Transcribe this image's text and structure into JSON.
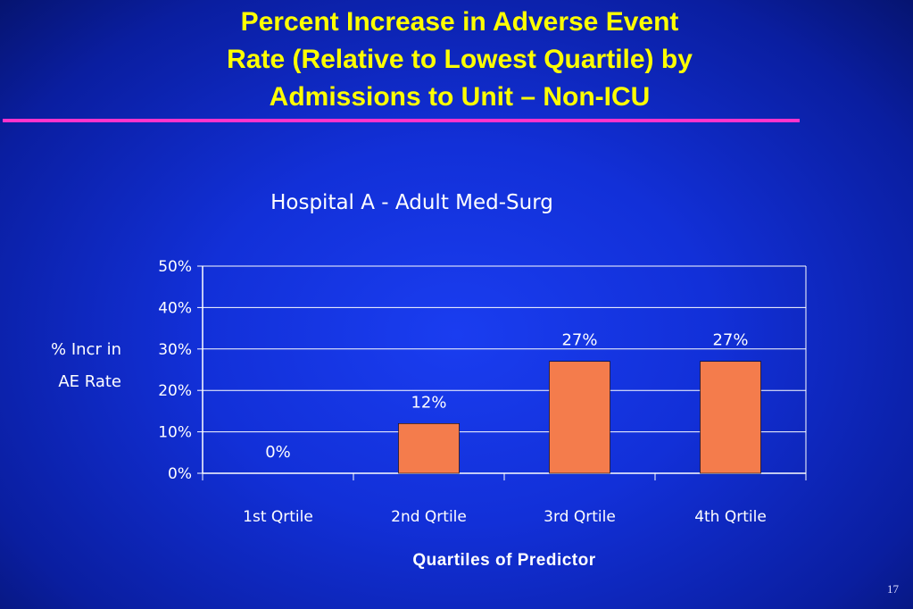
{
  "slide": {
    "title_lines": [
      "Percent Increase in Adverse Event",
      "Rate (Relative to Lowest Quartile) by",
      "Admissions to Unit – Non-ICU"
    ],
    "page_number": "17"
  },
  "colors": {
    "title": "#ffff00",
    "accent_line": "#ff33cc",
    "bar_fill": "#f47c4c",
    "text": "#ffffff"
  },
  "chart_data": {
    "type": "bar",
    "title": "Hospital A - Adult Med-Surg",
    "ylabel_lines": [
      "% Incr in",
      "AE Rate"
    ],
    "xlabel": "Quartiles of Predictor",
    "categories": [
      "1st Qrtile",
      "2nd Qrtile",
      "3rd Qrtile",
      "4th Qrtile"
    ],
    "values": [
      0,
      12,
      27,
      27
    ],
    "data_labels": [
      "0%",
      "12%",
      "27%",
      "27%"
    ],
    "ylim": [
      0,
      50
    ],
    "yticks": [
      0,
      10,
      20,
      30,
      40,
      50
    ],
    "ytick_labels": [
      "0%",
      "10%",
      "20%",
      "30%",
      "40%",
      "50%"
    ],
    "grid": true
  }
}
